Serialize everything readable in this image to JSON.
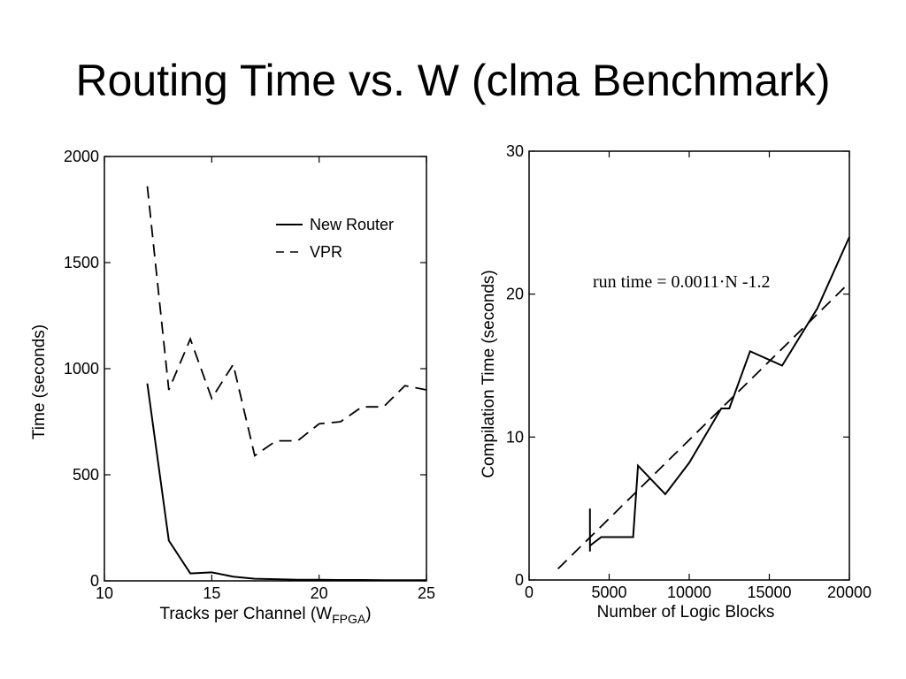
{
  "slide": {
    "title": "Routing Time vs. W (clma Benchmark)"
  },
  "chart_data": [
    {
      "type": "line",
      "xlabel": "Tracks per Channel (W",
      "xlabel_sub": "FPGA",
      "xlabel_end": ")",
      "ylabel": "Time (seconds)",
      "xlim": [
        10,
        25
      ],
      "ylim": [
        0,
        2000
      ],
      "xticks": [
        10,
        15,
        20,
        25
      ],
      "yticks": [
        0,
        500,
        1000,
        1500,
        2000
      ],
      "grid": false,
      "legend_position": "top-right",
      "series": [
        {
          "name": "New Router",
          "style": "solid",
          "x": [
            12,
            13,
            14,
            15,
            16,
            17,
            18,
            19,
            20,
            21,
            22,
            23,
            24,
            25
          ],
          "y": [
            930,
            190,
            35,
            40,
            20,
            10,
            8,
            5,
            5,
            4,
            4,
            3,
            3,
            3
          ]
        },
        {
          "name": "VPR",
          "style": "dashed",
          "x": [
            12,
            13,
            14,
            15,
            16,
            17,
            18,
            19,
            20,
            21,
            22,
            23,
            24,
            25
          ],
          "y": [
            1860,
            900,
            1140,
            860,
            1020,
            590,
            660,
            660,
            740,
            750,
            820,
            820,
            920,
            900
          ]
        }
      ]
    },
    {
      "type": "line",
      "xlabel": "Number of Logic Blocks",
      "ylabel": "Compilation Time (seconds)",
      "xlim": [
        0,
        20000
      ],
      "ylim": [
        0,
        30
      ],
      "xticks": [
        0,
        5000,
        10000,
        15000,
        20000
      ],
      "yticks": [
        0,
        10,
        20,
        30
      ],
      "grid": false,
      "annotation": "run time = 0.0011·N -1.2",
      "series": [
        {
          "style": "solid",
          "x": [
            3800,
            3800,
            3800,
            4500,
            6500,
            6800,
            8500,
            10000,
            12000,
            12500,
            13800,
            15800,
            18000,
            20000
          ],
          "y": [
            5,
            2,
            2.4,
            3,
            3,
            8,
            6,
            8.2,
            12,
            12,
            16,
            15,
            19,
            24
          ]
        },
        {
          "style": "dashed",
          "fit": "run time = 0.0011*N - 1.2",
          "x": [
            1800,
            20000
          ],
          "y": [
            0.78,
            20.8
          ]
        }
      ]
    }
  ]
}
